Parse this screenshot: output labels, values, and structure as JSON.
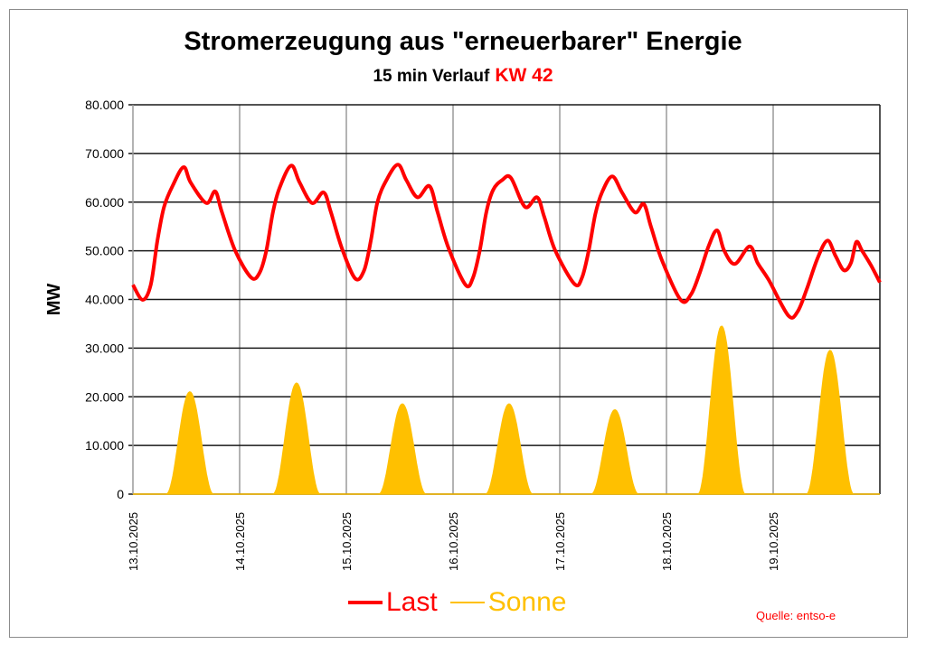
{
  "chart_data": {
    "type": "area",
    "title": "Stromerzeugung aus \"erneuerbarer\" Energie",
    "subtitle": "15 min Verlauf",
    "subtitle_highlight": "KW 42",
    "ylabel": "MW",
    "xlabel": "",
    "ylim": [
      0,
      80000
    ],
    "xlim_hours": [
      0,
      168
    ],
    "y_ticks": [
      0,
      10000,
      20000,
      30000,
      40000,
      50000,
      60000,
      70000,
      80000
    ],
    "y_tick_labels": [
      "0",
      "10.000",
      "20.000",
      "30.000",
      "40.000",
      "50.000",
      "60.000",
      "70.000",
      "80.000"
    ],
    "x_tick_labels": [
      "13.10.2025",
      "14.10.2025",
      "15.10.2025",
      "16.10.2025",
      "17.10.2025",
      "18.10.2025",
      "19.10.2025"
    ],
    "grid": true,
    "legend_placement": "bottom",
    "source": "Quelle: entso-e",
    "series": [
      {
        "name": "Last",
        "type": "line",
        "color": "#ff0000",
        "hours": [
          0,
          2.2,
          4,
          5.5,
          7,
          9,
          11.4,
          13,
          16.5,
          18.5,
          20,
          23,
          26.6,
          28.5,
          30,
          31.5,
          33,
          35.6,
          37.5,
          40.3,
          42.9,
          44.5,
          47,
          50,
          52,
          53.5,
          55,
          57,
          59.6,
          61.5,
          64,
          66.7,
          68.5,
          71,
          74.8,
          76.5,
          78,
          79.5,
          81,
          83,
          85,
          88.2,
          90.9,
          92.5,
          95,
          99.3,
          101,
          102.5,
          104,
          105.5,
          107.8,
          110,
          112.9,
          114.9,
          116.5,
          119,
          123.2,
          125.5,
          127.5,
          129.5,
          131.4,
          133,
          135.4,
          138.7,
          140.5,
          143,
          147.4,
          149.5,
          151.5,
          154,
          156.2,
          158,
          159.9,
          161.5,
          162.7,
          164,
          166,
          168
        ],
        "values": [
          43000,
          39900,
          43000,
          52000,
          59000,
          63500,
          67200,
          64000,
          59800,
          62200,
          58000,
          50000,
          44500,
          45500,
          50000,
          58000,
          63000,
          67500,
          64000,
          59800,
          62000,
          58000,
          50500,
          44300,
          46000,
          52000,
          60000,
          64500,
          67700,
          64500,
          61000,
          63300,
          58000,
          50500,
          43000,
          44500,
          50000,
          58000,
          62500,
          64500,
          65000,
          59000,
          61000,
          57000,
          50000,
          43200,
          44500,
          50000,
          57500,
          62000,
          65300,
          62000,
          57900,
          59600,
          55000,
          48000,
          39900,
          41000,
          45500,
          51000,
          54200,
          50000,
          47300,
          50900,
          47500,
          44000,
          36700,
          37500,
          42000,
          48500,
          52100,
          49000,
          46000,
          47500,
          51800,
          50000,
          47000,
          43500
        ]
      },
      {
        "name": "Sonne",
        "type": "area",
        "color": "#ffc000",
        "peak_hours": [
          12.8,
          36.8,
          60.6,
          84.6,
          108.4,
          132.4,
          156.8
        ],
        "peak_values": [
          21000,
          22800,
          18500,
          18500,
          17300,
          34500,
          29500
        ],
        "daylight_hours": 10.5
      }
    ]
  }
}
